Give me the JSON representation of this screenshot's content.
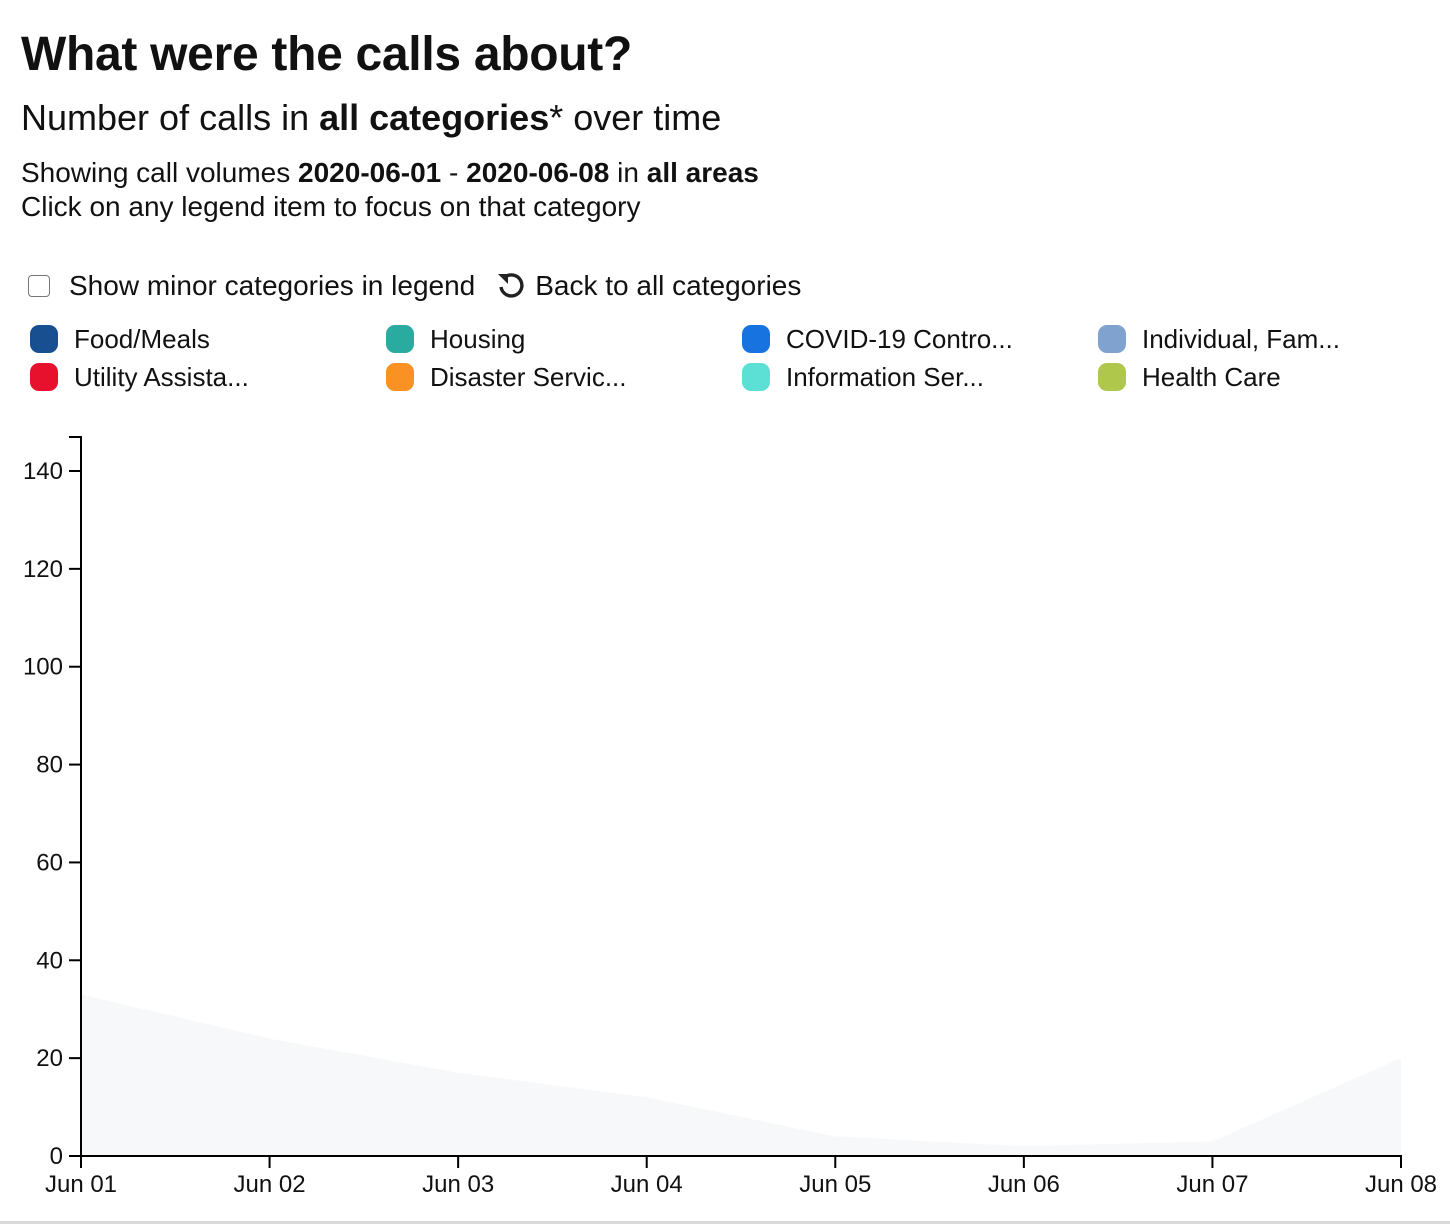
{
  "header": {
    "title": "What were the calls about?",
    "subtitle_prefix": "Number of calls in ",
    "subtitle_bold": "all categories",
    "subtitle_suffix": "* over time",
    "range_prefix": "Showing call volumes ",
    "range_start": "2020-06-01",
    "range_sep": " - ",
    "range_end": "2020-06-08",
    "range_in": " in ",
    "range_area": "all areas",
    "hint": "Click on any legend item to focus on that category"
  },
  "controls": {
    "show_minor_label": "Show minor categories in legend",
    "show_minor_checked": false,
    "reset_label": "Back to all categories",
    "reset_icon": "undo-icon"
  },
  "legend": [
    {
      "label": "Food/Meals",
      "color": "#174f91"
    },
    {
      "label": "Housing",
      "color": "#2aab9f"
    },
    {
      "label": "COVID-19 Contro...",
      "color": "#1673e0"
    },
    {
      "label": "Individual, Fam...",
      "color": "#7fa2cf"
    },
    {
      "label": "Utility Assista...",
      "color": "#e8112d"
    },
    {
      "label": "Disaster Servic...",
      "color": "#fa9223"
    },
    {
      "label": "Information Ser...",
      "color": "#5ce0d6"
    },
    {
      "label": "Health Care",
      "color": "#afc74a"
    }
  ],
  "chart_data": {
    "type": "area",
    "x": [
      "Jun 01",
      "Jun 02",
      "Jun 03",
      "Jun 04",
      "Jun 05",
      "Jun 06",
      "Jun 07",
      "Jun 08"
    ],
    "series": [
      {
        "values": [
          33,
          24,
          17,
          12,
          4,
          2,
          3,
          20
        ],
        "color": "#f7f8fa"
      }
    ],
    "ylim": [
      0,
      147
    ],
    "yticks": [
      0,
      20,
      40,
      60,
      80,
      100,
      120,
      140
    ],
    "xlabel": "",
    "ylabel": "",
    "grid": false
  }
}
